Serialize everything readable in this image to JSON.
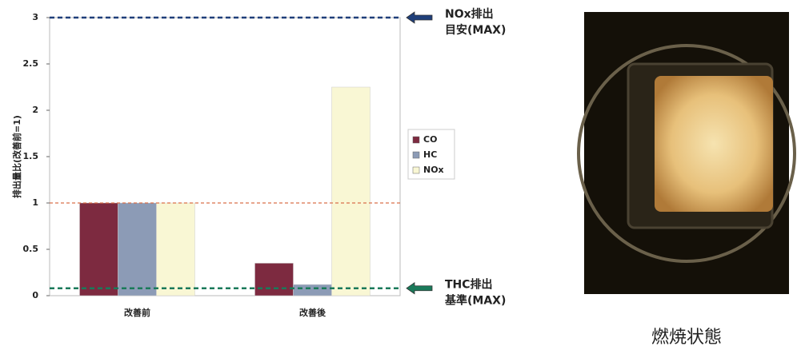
{
  "chart_data": {
    "type": "bar",
    "y_label": "排出量比(改善前=1)",
    "categories": [
      "改善前",
      "改善後"
    ],
    "series": [
      {
        "name": "CO",
        "color": "#7d2a40",
        "values": [
          1,
          0.35
        ]
      },
      {
        "name": "HC",
        "color": "#8c9bb6",
        "values": [
          1,
          0.12
        ]
      },
      {
        "name": "NOx",
        "color": "#f9f7d4",
        "values": [
          1,
          2.25
        ]
      }
    ],
    "ylim": [
      0,
      3
    ],
    "yticks": [
      0,
      0.5,
      1,
      1.5,
      2,
      2.5,
      3
    ],
    "reference_lines": [
      {
        "value": 3,
        "color": "#1f3f7a",
        "label_lines": [
          "NOx排出",
          "目安(MAX)"
        ]
      },
      {
        "value": 1,
        "color": "#d9704a"
      },
      {
        "value": 0.08,
        "color": "#1a7a5a",
        "label_lines": [
          "THC排出",
          "基準(MAX)"
        ]
      }
    ]
  },
  "photo": {
    "caption": "燃焼状態"
  }
}
